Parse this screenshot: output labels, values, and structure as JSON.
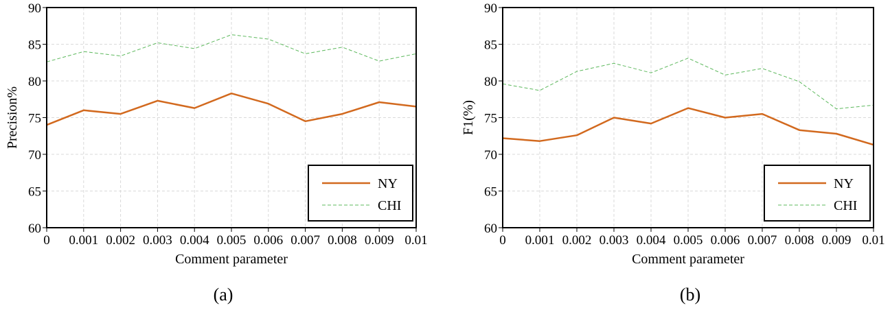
{
  "chart_data": [
    {
      "type": "line",
      "caption": "(a)",
      "xlabel": "Comment parameter",
      "ylabel": "Precision%",
      "categories": [
        "0",
        "0.001",
        "0.002",
        "0.003",
        "0.004",
        "0.005",
        "0.006",
        "0.007",
        "0.008",
        "0.009",
        "0.01"
      ],
      "x": [
        0,
        0.001,
        0.002,
        0.003,
        0.004,
        0.005,
        0.006,
        0.007,
        0.008,
        0.009,
        0.01
      ],
      "xlim": [
        0,
        0.01
      ],
      "ylim": [
        60,
        90
      ],
      "yticks": [
        60,
        65,
        70,
        75,
        80,
        85,
        90
      ],
      "grid": true,
      "legend_position": "bottom-right",
      "series": [
        {
          "name": "NY",
          "color": "#d2691e",
          "style": "solid",
          "values": [
            74.0,
            76.0,
            75.5,
            77.3,
            76.3,
            78.3,
            76.9,
            74.5,
            75.5,
            77.1,
            76.5
          ]
        },
        {
          "name": "CHI",
          "color": "#5cb85c",
          "style": "dashed",
          "values": [
            82.6,
            84.0,
            83.4,
            85.2,
            84.4,
            86.3,
            85.7,
            83.7,
            84.6,
            82.7,
            83.7
          ]
        }
      ]
    },
    {
      "type": "line",
      "caption": "(b)",
      "xlabel": "Comment parameter",
      "ylabel": "F1(%)",
      "categories": [
        "0",
        "0.001",
        "0.002",
        "0.003",
        "0.004",
        "0.005",
        "0.006",
        "0.007",
        "0.008",
        "0.009",
        "0.01"
      ],
      "x": [
        0,
        0.001,
        0.002,
        0.003,
        0.004,
        0.005,
        0.006,
        0.007,
        0.008,
        0.009,
        0.01
      ],
      "xlim": [
        0,
        0.01
      ],
      "ylim": [
        60,
        90
      ],
      "yticks": [
        60,
        65,
        70,
        75,
        80,
        85,
        90
      ],
      "grid": true,
      "legend_position": "bottom-right",
      "series": [
        {
          "name": "NY",
          "color": "#d2691e",
          "style": "solid",
          "values": [
            72.2,
            71.8,
            72.6,
            75.0,
            74.2,
            76.3,
            75.0,
            75.5,
            73.3,
            72.8,
            71.3
          ]
        },
        {
          "name": "CHI",
          "color": "#5cb85c",
          "style": "dashed",
          "values": [
            79.6,
            78.7,
            81.3,
            82.4,
            81.1,
            83.1,
            80.8,
            81.7,
            79.9,
            76.2,
            76.7
          ]
        }
      ]
    }
  ]
}
